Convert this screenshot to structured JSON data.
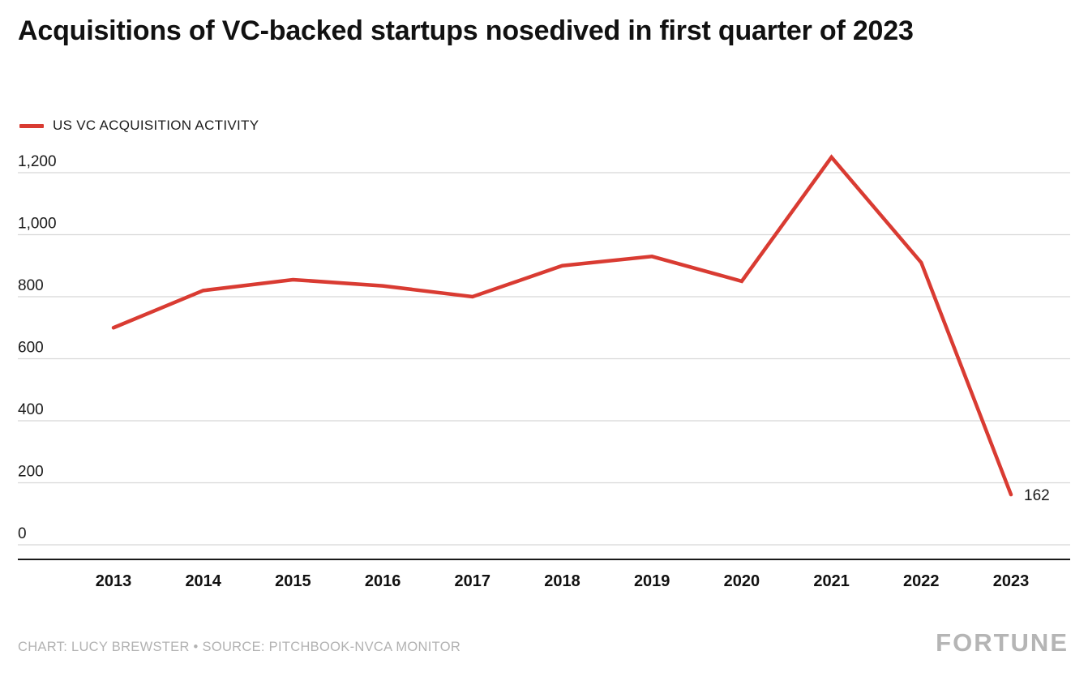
{
  "title": "Acquisitions of VC-backed startups nosedived in first quarter of 2023",
  "legend": {
    "label": "US VC ACQUISITION ACTIVITY",
    "color": "#d93b32"
  },
  "chart_data": {
    "type": "line",
    "title": "Acquisitions of VC-backed startups nosedived in first quarter of 2023",
    "x": [
      2013,
      2014,
      2015,
      2016,
      2017,
      2018,
      2019,
      2020,
      2021,
      2022,
      2023
    ],
    "series": [
      {
        "name": "US VC ACQUISITION ACTIVITY",
        "color": "#d93b32",
        "values": [
          700,
          820,
          855,
          835,
          800,
          900,
          930,
          850,
          1250,
          910,
          162
        ]
      }
    ],
    "end_label": "162",
    "xlabel": "",
    "ylabel": "",
    "ylim": [
      0,
      1300
    ],
    "yticks": [
      0,
      200,
      400,
      600,
      800,
      1000,
      1200
    ],
    "ytick_labels": [
      "0",
      "200",
      "400",
      "600",
      "800",
      "1,000",
      "1,200"
    ],
    "grid": true,
    "legend_position": "top-left",
    "grid_color": "#d8d8d8",
    "axis_color": "#1a1a1a"
  },
  "footer": {
    "credit": "CHART: LUCY BREWSTER • SOURCE: PITCHBOOK-NVCA MONITOR",
    "brand": "FORTUNE"
  }
}
